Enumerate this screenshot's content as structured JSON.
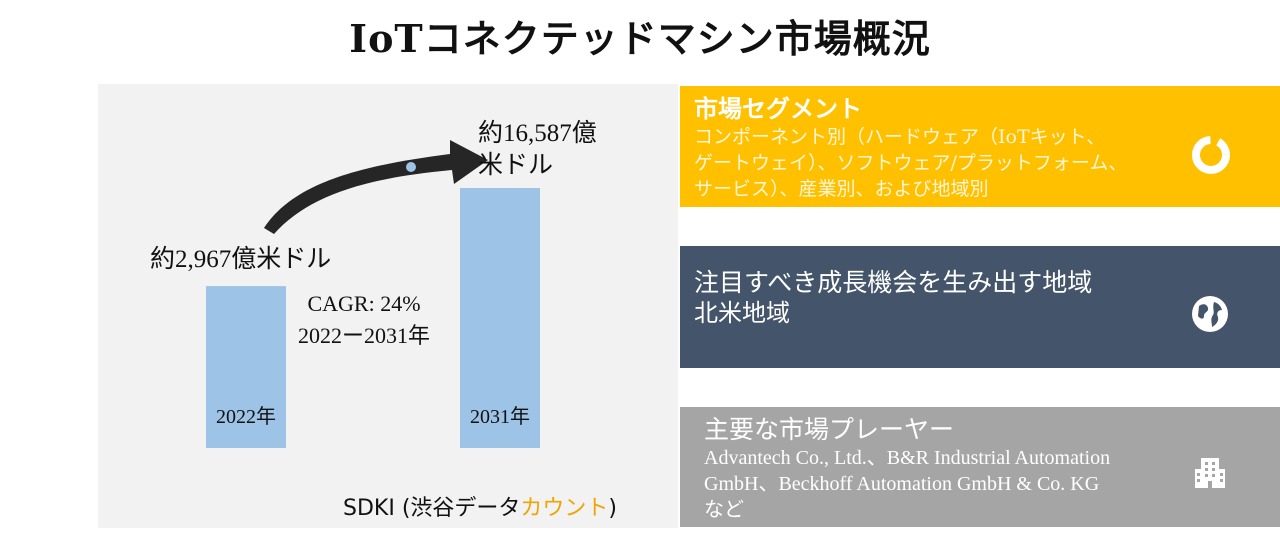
{
  "title": "IoTコネクテッドマシン市場概況",
  "chart_data": {
    "type": "bar",
    "categories": [
      "2022年",
      "2031年"
    ],
    "values": [
      296.7,
      1658.7
    ],
    "value_labels": [
      "約2,967億米ドル",
      "約16,587億米ドル"
    ],
    "value_labels_split": [
      [
        "約2,967億米ドル"
      ],
      [
        "約16,587億",
        "米ドル"
      ]
    ],
    "annotation": [
      "CAGR: 24%",
      "2022ー2031年"
    ],
    "bar_color": "#9dc3e6",
    "arrow_color": "#262626"
  },
  "source": {
    "prefix": "SDKI (渋谷データ",
    "highlight": "カウント",
    "suffix": ")"
  },
  "panels": {
    "segment": {
      "heading": "市場セグメント",
      "lines": [
        "コンポーネント別（ハードウェア（IoTキット、",
        "ゲートウェイ）、ソフトウェア/プラットフォーム、",
        "サービス）、産業別、および地域別"
      ],
      "color": "#ffc000",
      "icon": "donut-chart-icon"
    },
    "region": {
      "heading": "注目すべき成長機会を生み出す地域",
      "lines": [
        "北米地域"
      ],
      "color": "#44546a",
      "icon": "globe-icon"
    },
    "players": {
      "heading": "主要な市場プレーヤー",
      "lines": [
        "Advantech Co., Ltd.、B&R Industrial Automation",
        "GmbH、Beckhoff Automation GmbH & Co. KG",
        "など"
      ],
      "color": "#a5a5a5",
      "icon": "office-building-icon"
    }
  }
}
